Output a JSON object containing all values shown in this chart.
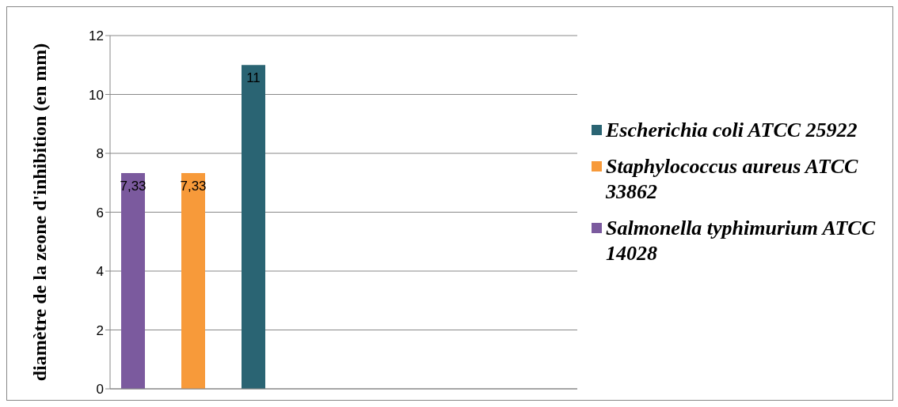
{
  "chart_data": {
    "type": "bar",
    "ylabel": "diamètre de la zeone d'inhibition (en mm)",
    "categories": [
      null
    ],
    "series": [
      {
        "name": "Salmonella typhimurium ATCC 14028",
        "color": "#7b5a9e",
        "values": [
          7.33
        ],
        "value_labels": [
          "7,33"
        ]
      },
      {
        "name": "Staphylococcus aureus ATCC 33862",
        "color": "#f79a3a",
        "values": [
          7.33
        ],
        "value_labels": [
          "7,33"
        ]
      },
      {
        "name": "Escherichia coli ATCC 25922",
        "color": "#2a6473",
        "values": [
          11
        ],
        "value_labels": [
          "11"
        ]
      }
    ],
    "ylim": [
      0,
      12
    ],
    "yticks": [
      0,
      2,
      4,
      6,
      8,
      10,
      12
    ],
    "grid": "y",
    "legend": "right"
  }
}
